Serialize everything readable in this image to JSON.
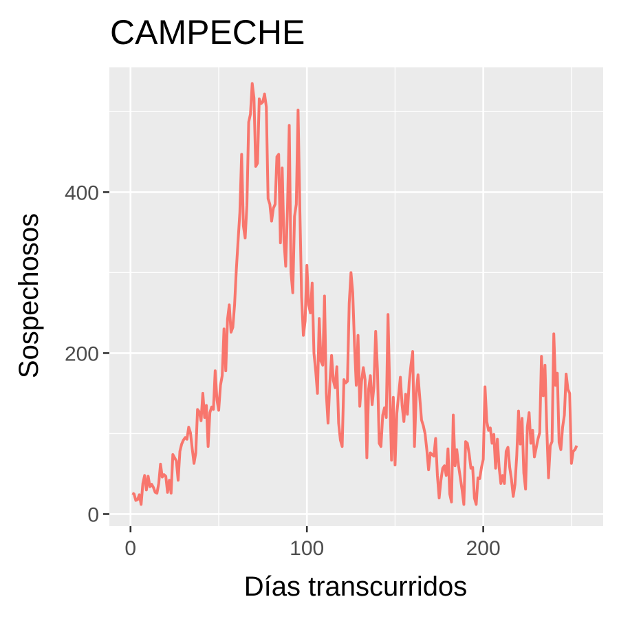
{
  "chart_data": {
    "type": "line",
    "title": "CAMPECHE",
    "xlabel": "Días transcurridos",
    "ylabel": "Sospechosos",
    "xlim": [
      -12,
      268
    ],
    "ylim": [
      -15,
      555
    ],
    "x_ticks": [
      0,
      100,
      200
    ],
    "x_tick_labels": [
      "0",
      "100",
      "200"
    ],
    "y_ticks": [
      0,
      200,
      400
    ],
    "y_tick_labels": [
      "0",
      "200",
      "400"
    ],
    "x_minor_ticks": [
      50,
      150,
      250
    ],
    "y_minor_ticks": [
      100,
      300,
      500
    ],
    "grid": true,
    "legend": "none",
    "colors": {
      "panel": "#ebebeb",
      "grid": "#ffffff",
      "line": "#f8766d",
      "tick_mark": "#333333"
    },
    "series": [
      {
        "values": [
          [
            1,
            26
          ],
          [
            2,
            25
          ],
          [
            3,
            17
          ],
          [
            4,
            18
          ],
          [
            5,
            24
          ],
          [
            6,
            12
          ],
          [
            7,
            38
          ],
          [
            8,
            48
          ],
          [
            9,
            30
          ],
          [
            10,
            47
          ],
          [
            11,
            34
          ],
          [
            12,
            37
          ],
          [
            13,
            33
          ],
          [
            14,
            27
          ],
          [
            15,
            26
          ],
          [
            16,
            38
          ],
          [
            17,
            62
          ],
          [
            18,
            46
          ],
          [
            19,
            49
          ],
          [
            20,
            47
          ],
          [
            21,
            27
          ],
          [
            22,
            42
          ],
          [
            23,
            26
          ],
          [
            24,
            74
          ],
          [
            25,
            70
          ],
          [
            26,
            66
          ],
          [
            27,
            42
          ],
          [
            28,
            78
          ],
          [
            29,
            87
          ],
          [
            30,
            92
          ],
          [
            31,
            95
          ],
          [
            32,
            93
          ],
          [
            33,
            108
          ],
          [
            34,
            101
          ],
          [
            35,
            81
          ],
          [
            36,
            63
          ],
          [
            37,
            76
          ],
          [
            38,
            130
          ],
          [
            39,
            127
          ],
          [
            40,
            116
          ],
          [
            41,
            150
          ],
          [
            42,
            120
          ],
          [
            43,
            135
          ],
          [
            44,
            84
          ],
          [
            45,
            126
          ],
          [
            46,
            133
          ],
          [
            47,
            130
          ],
          [
            48,
            178
          ],
          [
            49,
            142
          ],
          [
            50,
            129
          ],
          [
            51,
            160
          ],
          [
            52,
            172
          ],
          [
            53,
            230
          ],
          [
            54,
            178
          ],
          [
            55,
            242
          ],
          [
            56,
            260
          ],
          [
            57,
            226
          ],
          [
            58,
            232
          ],
          [
            59,
            260
          ],
          [
            60,
            304
          ],
          [
            61,
            340
          ],
          [
            62,
            375
          ],
          [
            63,
            447
          ],
          [
            64,
            358
          ],
          [
            65,
            343
          ],
          [
            66,
            384
          ],
          [
            67,
            487
          ],
          [
            68,
            497
          ],
          [
            69,
            535
          ],
          [
            70,
            517
          ],
          [
            71,
            432
          ],
          [
            72,
            436
          ],
          [
            73,
            516
          ],
          [
            74,
            510
          ],
          [
            75,
            512
          ],
          [
            76,
            522
          ],
          [
            77,
            506
          ],
          [
            78,
            392
          ],
          [
            79,
            385
          ],
          [
            80,
            364
          ],
          [
            81,
            380
          ],
          [
            82,
            385
          ],
          [
            83,
            444
          ],
          [
            84,
            447
          ],
          [
            85,
            337
          ],
          [
            86,
            430
          ],
          [
            87,
            340
          ],
          [
            88,
            308
          ],
          [
            89,
            380
          ],
          [
            90,
            483
          ],
          [
            91,
            300
          ],
          [
            92,
            275
          ],
          [
            93,
            370
          ],
          [
            94,
            385
          ],
          [
            95,
            502
          ],
          [
            96,
            380
          ],
          [
            97,
            270
          ],
          [
            98,
            222
          ],
          [
            99,
            240
          ],
          [
            100,
            309
          ],
          [
            101,
            260
          ],
          [
            102,
            250
          ],
          [
            103,
            287
          ],
          [
            104,
            200
          ],
          [
            105,
            178
          ],
          [
            106,
            150
          ],
          [
            107,
            243
          ],
          [
            108,
            190
          ],
          [
            109,
            185
          ],
          [
            110,
            271
          ],
          [
            111,
            150
          ],
          [
            112,
            113
          ],
          [
            113,
            162
          ],
          [
            114,
            197
          ],
          [
            115,
            166
          ],
          [
            116,
            157
          ],
          [
            117,
            183
          ],
          [
            118,
            113
          ],
          [
            119,
            92
          ],
          [
            120,
            84
          ],
          [
            121,
            167
          ],
          [
            122,
            163
          ],
          [
            123,
            165
          ],
          [
            124,
            262
          ],
          [
            125,
            300
          ],
          [
            126,
            275
          ],
          [
            127,
            210
          ],
          [
            128,
            160
          ],
          [
            129,
            222
          ],
          [
            130,
            134
          ],
          [
            131,
            165
          ],
          [
            132,
            182
          ],
          [
            133,
            167
          ],
          [
            134,
            70
          ],
          [
            135,
            155
          ],
          [
            136,
            172
          ],
          [
            137,
            136
          ],
          [
            138,
            158
          ],
          [
            139,
            227
          ],
          [
            140,
            180
          ],
          [
            141,
            88
          ],
          [
            142,
            84
          ],
          [
            143,
            123
          ],
          [
            144,
            132
          ],
          [
            145,
            120
          ],
          [
            146,
            248
          ],
          [
            147,
            150
          ],
          [
            148,
            67
          ],
          [
            149,
            145
          ],
          [
            150,
            61
          ],
          [
            151,
            125
          ],
          [
            152,
            148
          ],
          [
            153,
            170
          ],
          [
            154,
            135
          ],
          [
            155,
            115
          ],
          [
            156,
            149
          ],
          [
            157,
            124
          ],
          [
            158,
            164
          ],
          [
            159,
            185
          ],
          [
            160,
            202
          ],
          [
            161,
            84
          ],
          [
            162,
            150
          ],
          [
            163,
            173
          ],
          [
            164,
            145
          ],
          [
            165,
            117
          ],
          [
            166,
            110
          ],
          [
            167,
            100
          ],
          [
            168,
            80
          ],
          [
            169,
            55
          ],
          [
            170,
            76
          ],
          [
            171,
            74
          ],
          [
            172,
            72
          ],
          [
            173,
            94
          ],
          [
            174,
            48
          ],
          [
            175,
            20
          ],
          [
            176,
            42
          ],
          [
            177,
            57
          ],
          [
            178,
            60
          ],
          [
            179,
            48
          ],
          [
            180,
            81
          ],
          [
            181,
            25
          ],
          [
            182,
            15
          ],
          [
            183,
            123
          ],
          [
            184,
            60
          ],
          [
            185,
            80
          ],
          [
            186,
            60
          ],
          [
            187,
            45
          ],
          [
            188,
            30
          ],
          [
            189,
            12
          ],
          [
            190,
            90
          ],
          [
            191,
            88
          ],
          [
            192,
            75
          ],
          [
            193,
            57
          ],
          [
            194,
            58
          ],
          [
            195,
            20
          ],
          [
            196,
            12
          ],
          [
            197,
            45
          ],
          [
            198,
            44
          ],
          [
            199,
            58
          ],
          [
            200,
            68
          ],
          [
            201,
            158
          ],
          [
            202,
            115
          ],
          [
            203,
            104
          ],
          [
            204,
            107
          ],
          [
            205,
            88
          ],
          [
            206,
            99
          ],
          [
            207,
            57
          ],
          [
            208,
            93
          ],
          [
            209,
            58
          ],
          [
            210,
            38
          ],
          [
            211,
            48
          ],
          [
            212,
            38
          ],
          [
            213,
            78
          ],
          [
            214,
            83
          ],
          [
            215,
            58
          ],
          [
            216,
            43
          ],
          [
            217,
            22
          ],
          [
            218,
            37
          ],
          [
            219,
            73
          ],
          [
            220,
            128
          ],
          [
            221,
            87
          ],
          [
            222,
            119
          ],
          [
            223,
            51
          ],
          [
            224,
            31
          ],
          [
            225,
            108
          ],
          [
            226,
            126
          ],
          [
            227,
            88
          ],
          [
            228,
            104
          ],
          [
            229,
            71
          ],
          [
            230,
            82
          ],
          [
            231,
            93
          ],
          [
            232,
            101
          ],
          [
            233,
            196
          ],
          [
            234,
            147
          ],
          [
            235,
            185
          ],
          [
            236,
            108
          ],
          [
            237,
            45
          ],
          [
            238,
            85
          ],
          [
            239,
            90
          ],
          [
            240,
            224
          ],
          [
            241,
            160
          ],
          [
            242,
            175
          ],
          [
            243,
            89
          ],
          [
            244,
            80
          ],
          [
            245,
            108
          ],
          [
            246,
            123
          ],
          [
            247,
            174
          ],
          [
            248,
            155
          ],
          [
            249,
            150
          ],
          [
            250,
            63
          ],
          [
            251,
            78
          ],
          [
            252,
            80
          ],
          [
            253,
            85
          ]
        ]
      }
    ]
  }
}
